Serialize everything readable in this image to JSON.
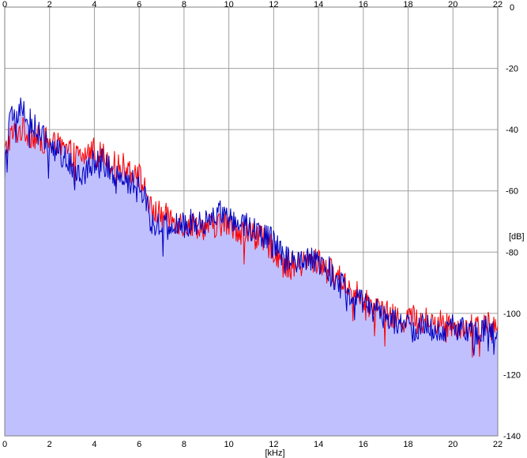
{
  "chart_data": {
    "type": "area",
    "title": "",
    "xlabel": "[kHz]",
    "ylabel": "[dB]",
    "xlim": [
      0,
      22
    ],
    "ylim": [
      -140,
      0
    ],
    "x_ticks": [
      "0",
      "2",
      "4",
      "6",
      "8",
      "10",
      "12",
      "14",
      "16",
      "18",
      "20",
      "22"
    ],
    "y_ticks": [
      "0",
      "-20",
      "-40",
      "-60",
      "-80",
      "-100",
      "-120",
      "-140"
    ],
    "grid": true,
    "legend": "none",
    "colors": {
      "background": "#ffffff",
      "grid": "#a0a0a0",
      "fill": "#c0c0ff",
      "red_channel": "#ff0000",
      "blue_channel": "#0000c0"
    },
    "series": [
      {
        "color": "#ff0000",
        "x": [
          0,
          0.25,
          0.5,
          0.75,
          1,
          1.5,
          2,
          2.5,
          3,
          3.5,
          4,
          4.5,
          5,
          5.5,
          6,
          6.3,
          6.5,
          7,
          7.5,
          8,
          8.5,
          9,
          9.5,
          10,
          10.5,
          11,
          11.5,
          12,
          12.5,
          13,
          13.5,
          14,
          14.5,
          15,
          15.5,
          16,
          16.5,
          17,
          17.5,
          18,
          18.5,
          19,
          19.5,
          20,
          20.5,
          21,
          21.5,
          22
        ],
        "y": [
          -48,
          -42,
          -41,
          -40,
          -41,
          -43,
          -44,
          -46,
          -48,
          -49,
          -46,
          -49,
          -52,
          -52,
          -55,
          -60,
          -66,
          -68,
          -69,
          -71,
          -71,
          -72,
          -71,
          -71,
          -73,
          -74,
          -76,
          -79,
          -84,
          -85,
          -83,
          -83,
          -86,
          -89,
          -92,
          -96,
          -98,
          -100,
          -102,
          -101,
          -102,
          -102,
          -103,
          -104,
          -104,
          -105,
          -103,
          -106
        ]
      },
      {
        "color": "#0000c0",
        "x": [
          0,
          0.25,
          0.5,
          0.75,
          1,
          1.5,
          2,
          2.5,
          3,
          3.5,
          4,
          4.5,
          5,
          5.5,
          6,
          6.3,
          6.5,
          7,
          7.5,
          8,
          8.5,
          9,
          9.5,
          10,
          10.5,
          11,
          11.5,
          12,
          12.5,
          13,
          13.5,
          14,
          14.5,
          15,
          15.5,
          16,
          16.5,
          17,
          17.5,
          18,
          18.5,
          19,
          19.5,
          20,
          20.5,
          21,
          21.5,
          22
        ],
        "y": [
          -52,
          -37,
          -35,
          -33,
          -36,
          -41,
          -45,
          -48,
          -52,
          -54,
          -50,
          -51,
          -55,
          -57,
          -58,
          -62,
          -70,
          -71,
          -72,
          -71,
          -70,
          -70,
          -67,
          -69,
          -70,
          -72,
          -74,
          -77,
          -82,
          -84,
          -83,
          -83,
          -86,
          -91,
          -94,
          -97,
          -99,
          -101,
          -103,
          -104,
          -104,
          -105,
          -106,
          -104,
          -106,
          -107,
          -104,
          -107
        ]
      }
    ],
    "fill_under": "upper envelope of both series"
  }
}
